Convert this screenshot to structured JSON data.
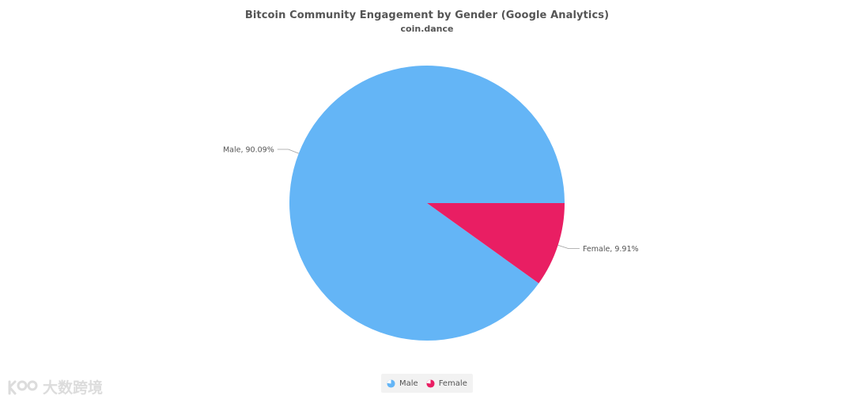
{
  "title": "Bitcoin Community Engagement by Gender (Google Analytics)",
  "subtitle": "coin.dance",
  "chart_data": {
    "type": "pie",
    "title": "Bitcoin Community Engagement by Gender (Google Analytics)",
    "subtitle": "coin.dance",
    "slices": [
      {
        "name": "Male",
        "value": 90.09,
        "label": "Male, 90.09%",
        "color": "#64b5f6"
      },
      {
        "name": "Female",
        "value": 9.91,
        "label": "Female, 9.91%",
        "color": "#e91e63"
      }
    ],
    "legend": [
      "Male",
      "Female"
    ],
    "legend_position": "bottom-center"
  },
  "legend": {
    "male_label": "Male",
    "female_label": "Female"
  },
  "watermark": {
    "text": "大数跨境"
  }
}
